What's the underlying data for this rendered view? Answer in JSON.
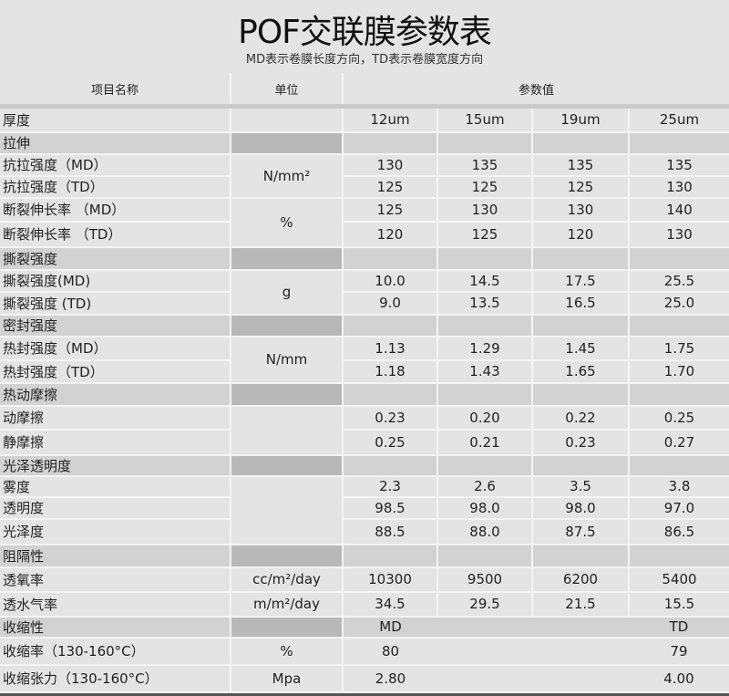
{
  "title": "POF交联膜参数表",
  "subtitle": "MD表示卷膜长度方向，TD表示卷膜宽度方向",
  "headers": {
    "name": "项目名称",
    "unit": "单位",
    "values": "参数值"
  },
  "rows": [
    {
      "name": "厚度",
      "type": "data",
      "unit": "",
      "unit_span": 1,
      "values": [
        "12um",
        "15um",
        "19um",
        "25um"
      ]
    },
    {
      "name": "拉伸",
      "type": "section",
      "unit": "",
      "unit_span": 1,
      "values": [
        "",
        "",
        "",
        ""
      ]
    },
    {
      "name": "抗拉强度（MD）",
      "type": "data",
      "unit": "N/mm²",
      "unit_span": 2,
      "values": [
        "130",
        "135",
        "135",
        "135"
      ]
    },
    {
      "name": "抗拉强度（TD）",
      "type": "data",
      "values": [
        "125",
        "125",
        "125",
        "130"
      ]
    },
    {
      "name": "断裂伸长率 （MD）",
      "type": "data",
      "unit": "%",
      "unit_span": 2,
      "values": [
        "125",
        "130",
        "130",
        "140"
      ]
    },
    {
      "name": "断裂伸长率 （TD）",
      "type": "data",
      "values": [
        "120",
        "125",
        "120",
        "130"
      ]
    },
    {
      "name": "撕裂强度",
      "type": "section",
      "unit": "",
      "unit_span": 1,
      "values": [
        "",
        "",
        "",
        ""
      ]
    },
    {
      "name": "撕裂强度(MD)",
      "type": "data",
      "unit": "g",
      "unit_span": 2,
      "values": [
        "10.0",
        "14.5",
        "17.5",
        "25.5"
      ]
    },
    {
      "name": "撕裂强度 (TD)",
      "type": "data",
      "values": [
        "9.0",
        "13.5",
        "16.5",
        "25.0"
      ]
    },
    {
      "name": "密封强度",
      "type": "section",
      "unit": "",
      "unit_span": 1,
      "values": [
        "",
        "",
        "",
        ""
      ]
    },
    {
      "name": "热封强度（MD）",
      "type": "data",
      "unit": "N/mm",
      "unit_span": 2,
      "values": [
        "1.13",
        "1.29",
        "1.45",
        "1.75"
      ]
    },
    {
      "name": "热封强度（TD）",
      "type": "data",
      "values": [
        "1.18",
        "1.43",
        "1.65",
        "1.70"
      ]
    },
    {
      "name": "热动摩擦",
      "type": "section",
      "unit": "",
      "unit_span": 1,
      "values": [
        "",
        "",
        "",
        ""
      ]
    },
    {
      "name": "动摩擦",
      "type": "data",
      "unit": "",
      "unit_span": 2,
      "values": [
        "0.23",
        "0.20",
        "0.22",
        "0.25"
      ]
    },
    {
      "name": "静摩擦",
      "type": "data",
      "values": [
        "0.25",
        "0.21",
        "0.23",
        "0.27"
      ]
    },
    {
      "name": "光泽透明度",
      "type": "section",
      "unit": "",
      "unit_span": 1,
      "values": [
        "",
        "",
        "",
        ""
      ]
    },
    {
      "name": "雾度",
      "type": "data",
      "unit": "",
      "unit_span": 3,
      "values": [
        "2.3",
        "2.6",
        "3.5",
        "3.8"
      ]
    },
    {
      "name": "透明度",
      "type": "data",
      "values": [
        "98.5",
        "98.0",
        "98.0",
        "97.0"
      ]
    },
    {
      "name": "光泽度",
      "type": "data",
      "values": [
        "88.5",
        "88.0",
        "87.5",
        "86.5"
      ]
    },
    {
      "name": "阻隔性",
      "type": "section",
      "unit": "",
      "unit_span": 1,
      "values": [
        "",
        "",
        "",
        ""
      ]
    },
    {
      "name": "透氧率",
      "type": "data",
      "unit": "cc/m²/day",
      "unit_span": 1,
      "values": [
        "10300",
        "9500",
        "6200",
        "5400"
      ]
    },
    {
      "name": "透水气率",
      "type": "data",
      "unit": "m/m²/day",
      "unit_span": 1,
      "values": [
        "34.5",
        "29.5",
        "21.5",
        "15.5"
      ]
    },
    {
      "name": "收缩性",
      "type": "section",
      "nosplit": true,
      "unit": "",
      "unit_span": 1,
      "values": [
        "MD",
        "",
        "",
        "TD"
      ]
    },
    {
      "name": "收缩率（130-160°C）",
      "type": "data",
      "nosplit": true,
      "unit": "%",
      "unit_span": 1,
      "values": [
        "80",
        "",
        "",
        "79"
      ]
    },
    {
      "name": "收缩张力（130-160°C）",
      "type": "data",
      "nosplit": true,
      "unit": "Mpa",
      "unit_span": 1,
      "values": [
        "2.80",
        "",
        "",
        "4.00"
      ]
    }
  ]
}
